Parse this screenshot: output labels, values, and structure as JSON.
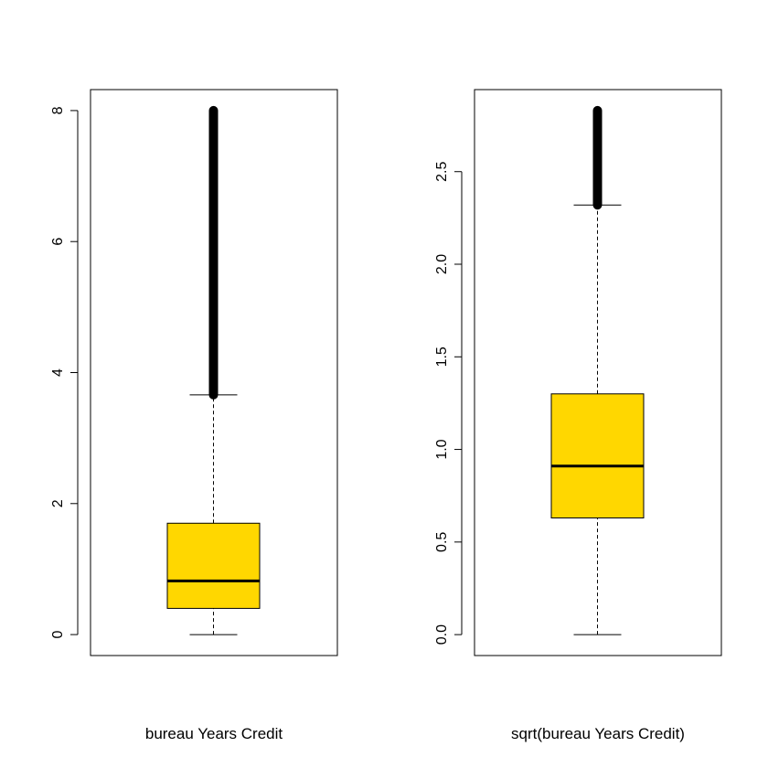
{
  "chart_data": [
    {
      "type": "box",
      "xlabel": "bureau Years Credit",
      "ylabel": "",
      "title": "",
      "ylim": [
        -0.32,
        8.32
      ],
      "yticks": [
        {
          "value": 0,
          "label": "0"
        },
        {
          "value": 2,
          "label": "2"
        },
        {
          "value": 4,
          "label": "4"
        },
        {
          "value": 6,
          "label": "6"
        },
        {
          "value": 8,
          "label": "8"
        }
      ],
      "box": {
        "whisker_low": 0,
        "q1": 0.4,
        "median": 0.82,
        "q3": 1.7,
        "whisker_high": 3.66,
        "outliers_from": 3.66,
        "outliers_to": 8.0
      },
      "fill_color": "#FFD700"
    },
    {
      "type": "box",
      "xlabel": "sqrt(bureau Years Credit)",
      "ylabel": "",
      "title": "",
      "ylim": [
        -0.113,
        2.943
      ],
      "yticks": [
        {
          "value": 0,
          "label": "0.0"
        },
        {
          "value": 0.5,
          "label": "0.5"
        },
        {
          "value": 1.0,
          "label": "1.0"
        },
        {
          "value": 1.5,
          "label": "1.5"
        },
        {
          "value": 2.0,
          "label": "2.0"
        },
        {
          "value": 2.5,
          "label": "2.5"
        }
      ],
      "box": {
        "whisker_low": 0,
        "q1": 0.63,
        "median": 0.91,
        "q3": 1.3,
        "whisker_high": 2.32,
        "outliers_from": 2.32,
        "outliers_to": 2.83
      },
      "fill_color": "#FFD700"
    }
  ]
}
